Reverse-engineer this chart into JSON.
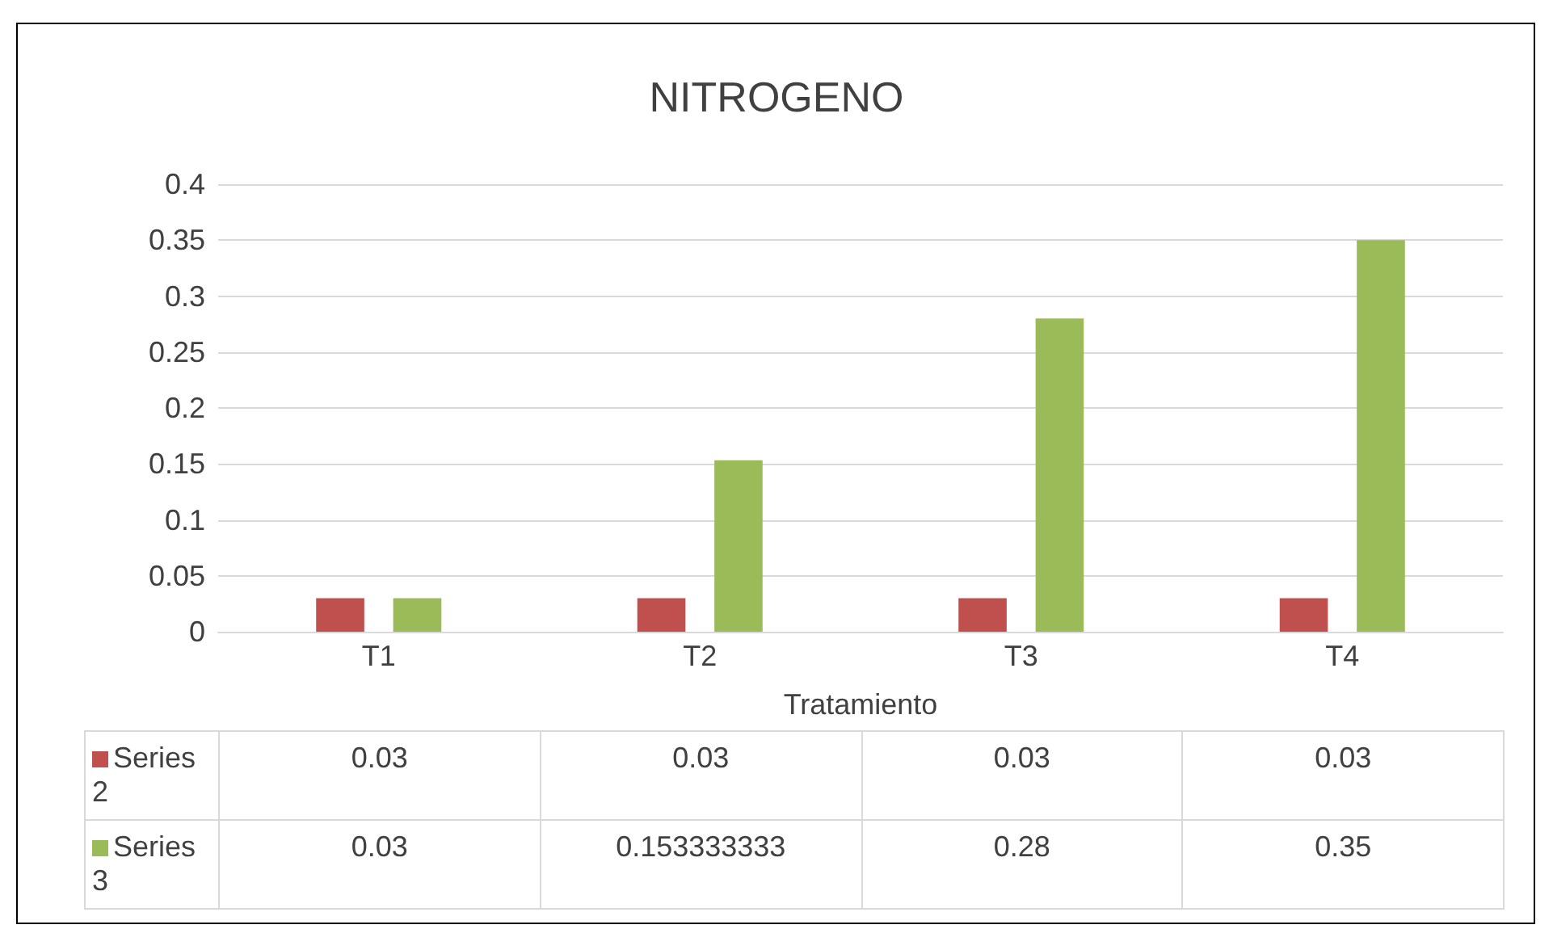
{
  "chart_data": {
    "type": "bar",
    "title": "NITROGENO",
    "xlabel": "Tratamiento",
    "categories": [
      "T1",
      "T2",
      "T3",
      "T4"
    ],
    "series": [
      {
        "name": "Series 2",
        "color": "#c0504d",
        "values": [
          0.03,
          0.03,
          0.03,
          0.03
        ]
      },
      {
        "name": "Series 3",
        "color": "#9bbb59",
        "values": [
          0.03,
          0.153333333,
          0.28,
          0.35
        ]
      }
    ],
    "ylim": [
      0,
      0.4
    ],
    "yticks": [
      0,
      0.05,
      0.1,
      0.15,
      0.2,
      0.25,
      0.3,
      0.35,
      0.4
    ],
    "grid": "y",
    "legend": "bottom",
    "data_labels": true
  }
}
